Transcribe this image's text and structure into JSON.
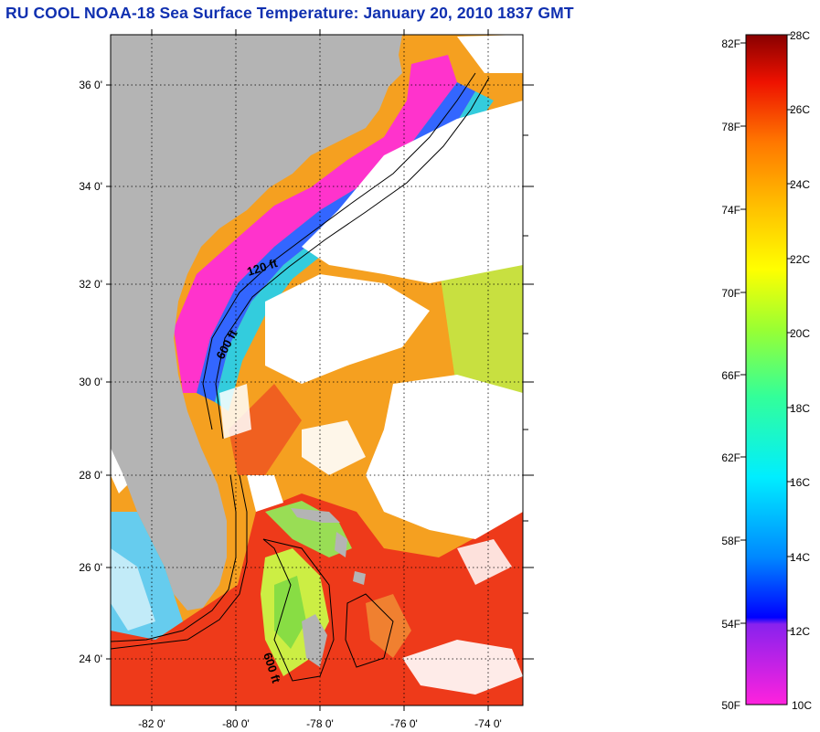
{
  "title": "RU COOL  NOAA-18  Sea Surface Temperature:  January 20, 2010 1837 GMT",
  "map": {
    "lat_labels": [
      "36 0'",
      "34 0'",
      "32 0'",
      "30 0'",
      "28 0'",
      "26 0'",
      "24 0'"
    ],
    "lon_labels": [
      "-82 0'",
      "-80 0'",
      "-78 0'",
      "-76 0'",
      "-74 0'"
    ],
    "isobath_labels": [
      "120 ft",
      "600 ft",
      "600 ft"
    ],
    "colors": {
      "land": "#b4b4b4",
      "cloud": "#ffffff",
      "cold_water": "#ff33cc",
      "gulf_stream": "#ee3a1a"
    }
  },
  "colorbar": {
    "fahrenheit": [
      "82F",
      "78F",
      "74F",
      "70F",
      "66F",
      "62F",
      "58F",
      "54F",
      "50F"
    ],
    "celsius": [
      "28C",
      "26C",
      "24C",
      "22C",
      "20C",
      "18C",
      "16C",
      "14C",
      "12C",
      "10C"
    ]
  }
}
